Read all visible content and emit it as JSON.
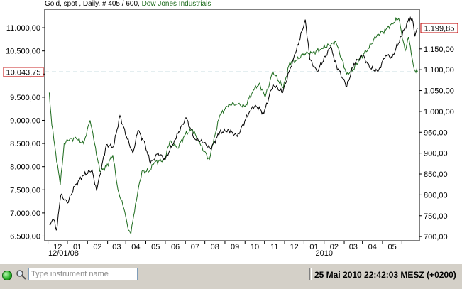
{
  "header": {
    "prefix": "Gold, spot , Daily, # 405 / 600,",
    "instrument2": "Dow Jones Industrials"
  },
  "colors": {
    "gold_series": "#000000",
    "dow_series": "#1d6b1d",
    "dashed_line": "#1a1a8c",
    "marker_border": "#c00000",
    "background": "#ffffff"
  },
  "status_bar": {
    "search_placeholder": "Type instrument name",
    "datetime": "25 Mai 2010 22:42:03  MESZ (+0200)"
  },
  "chart_data": {
    "type": "line",
    "x_ticks": [
      "12",
      "01",
      "02",
      "03",
      "04",
      "05",
      "06",
      "07",
      "08",
      "09",
      "10",
      "11",
      "12",
      "01",
      "02",
      "03",
      "04",
      "05"
    ],
    "x_year_labels": [
      "12/01/08",
      "2010"
    ],
    "left_axis": {
      "ticks": [
        "11.000,00",
        "10.500,00",
        "10.000,00",
        "9.500,00",
        "9.000,00",
        "8.500,00",
        "8.000,00",
        "7.500,00",
        "7.000,00",
        "6.500,00"
      ],
      "range": [
        6400,
        11400
      ]
    },
    "right_axis": {
      "ticks": [
        "1.199,85",
        "1.150,00",
        "1.100,00",
        "1.050,00",
        "1.000,00",
        "950,00",
        "900,00",
        "850,00",
        "800,00",
        "750,00",
        "700,00"
      ],
      "range": [
        690,
        1245
      ]
    },
    "markers": {
      "left": "10.043,75",
      "right": "1.199,85"
    },
    "series": [
      {
        "name": "Dow Jones Industrials",
        "axis": "left",
        "points": [
          [
            "2008-11-03",
            9600
          ],
          [
            "2008-11-07",
            8900
          ],
          [
            "2008-11-13",
            8300
          ],
          [
            "2008-11-20",
            7600
          ],
          [
            "2008-11-26",
            8500
          ],
          [
            "2008-12-05",
            8600
          ],
          [
            "2008-12-15",
            8600
          ],
          [
            "2008-12-26",
            8500
          ],
          [
            "2009-01-05",
            9000
          ],
          [
            "2009-01-12",
            8500
          ],
          [
            "2009-01-20",
            7900
          ],
          [
            "2009-01-30",
            8000
          ],
          [
            "2009-02-09",
            8250
          ],
          [
            "2009-02-17",
            7500
          ],
          [
            "2009-02-26",
            7100
          ],
          [
            "2009-03-04",
            6700
          ],
          [
            "2009-03-09",
            6550
          ],
          [
            "2009-03-16",
            7200
          ],
          [
            "2009-03-26",
            7900
          ],
          [
            "2009-04-06",
            7900
          ],
          [
            "2009-04-15",
            8100
          ],
          [
            "2009-04-30",
            8150
          ],
          [
            "2009-05-08",
            8550
          ],
          [
            "2009-05-20",
            8400
          ],
          [
            "2009-06-01",
            8700
          ],
          [
            "2009-06-12",
            8800
          ],
          [
            "2009-06-25",
            8450
          ],
          [
            "2009-07-08",
            8150
          ],
          [
            "2009-07-15",
            8600
          ],
          [
            "2009-07-24",
            9100
          ],
          [
            "2009-08-07",
            9350
          ],
          [
            "2009-08-20",
            9350
          ],
          [
            "2009-09-01",
            9300
          ],
          [
            "2009-09-14",
            9650
          ],
          [
            "2009-09-23",
            9800
          ],
          [
            "2009-10-02",
            9500
          ],
          [
            "2009-10-14",
            10050
          ],
          [
            "2009-10-30",
            9700
          ],
          [
            "2009-11-09",
            10250
          ],
          [
            "2009-11-20",
            10300
          ],
          [
            "2009-12-01",
            10450
          ],
          [
            "2009-12-14",
            10450
          ],
          [
            "2009-12-28",
            10550
          ],
          [
            "2010-01-12",
            10650
          ],
          [
            "2010-01-19",
            10700
          ],
          [
            "2010-02-05",
            10000
          ],
          [
            "2010-02-15",
            10100
          ],
          [
            "2010-02-26",
            10350
          ],
          [
            "2010-03-10",
            10550
          ],
          [
            "2010-03-24",
            10850
          ],
          [
            "2010-04-06",
            10950
          ],
          [
            "2010-04-16",
            11100
          ],
          [
            "2010-04-26",
            11200
          ],
          [
            "2010-05-06",
            10500
          ],
          [
            "2010-05-11",
            10800
          ],
          [
            "2010-05-20",
            10100
          ],
          [
            "2010-05-25",
            10050
          ]
        ]
      },
      {
        "axis": "right",
        "points": [
          [
            "2008-11-03",
            730
          ],
          [
            "2008-11-10",
            740
          ],
          [
            "2008-11-14",
            715
          ],
          [
            "2008-11-21",
            800
          ],
          [
            "2008-12-01",
            780
          ],
          [
            "2008-12-12",
            820
          ],
          [
            "2008-12-24",
            845
          ],
          [
            "2009-01-08",
            860
          ],
          [
            "2009-01-15",
            810
          ],
          [
            "2009-01-30",
            920
          ],
          [
            "2009-02-10",
            915
          ],
          [
            "2009-02-20",
            990
          ],
          [
            "2009-03-02",
            940
          ],
          [
            "2009-03-12",
            900
          ],
          [
            "2009-03-20",
            955
          ],
          [
            "2009-03-31",
            920
          ],
          [
            "2009-04-08",
            875
          ],
          [
            "2009-04-20",
            900
          ],
          [
            "2009-05-01",
            885
          ],
          [
            "2009-05-15",
            930
          ],
          [
            "2009-06-02",
            985
          ],
          [
            "2009-06-15",
            935
          ],
          [
            "2009-06-30",
            925
          ],
          [
            "2009-07-10",
            910
          ],
          [
            "2009-07-24",
            950
          ],
          [
            "2009-08-07",
            955
          ],
          [
            "2009-08-20",
            940
          ],
          [
            "2009-09-08",
            1000
          ],
          [
            "2009-09-17",
            1015
          ],
          [
            "2009-09-30",
            995
          ],
          [
            "2009-10-14",
            1065
          ],
          [
            "2009-10-29",
            1045
          ],
          [
            "2009-11-09",
            1100
          ],
          [
            "2009-11-18",
            1140
          ],
          [
            "2009-12-03",
            1220
          ],
          [
            "2009-12-10",
            1125
          ],
          [
            "2009-12-21",
            1095
          ],
          [
            "2010-01-11",
            1155
          ],
          [
            "2010-01-20",
            1110
          ],
          [
            "2010-02-05",
            1060
          ],
          [
            "2010-02-16",
            1115
          ],
          [
            "2010-03-02",
            1135
          ],
          [
            "2010-03-12",
            1105
          ],
          [
            "2010-03-25",
            1095
          ],
          [
            "2010-04-06",
            1135
          ],
          [
            "2010-04-16",
            1130
          ],
          [
            "2010-04-30",
            1180
          ],
          [
            "2010-05-10",
            1215
          ],
          [
            "2010-05-14",
            1225
          ],
          [
            "2010-05-18",
            1215
          ],
          [
            "2010-05-21",
            1180
          ],
          [
            "2010-05-25",
            1199.85
          ]
        ]
      }
    ]
  }
}
